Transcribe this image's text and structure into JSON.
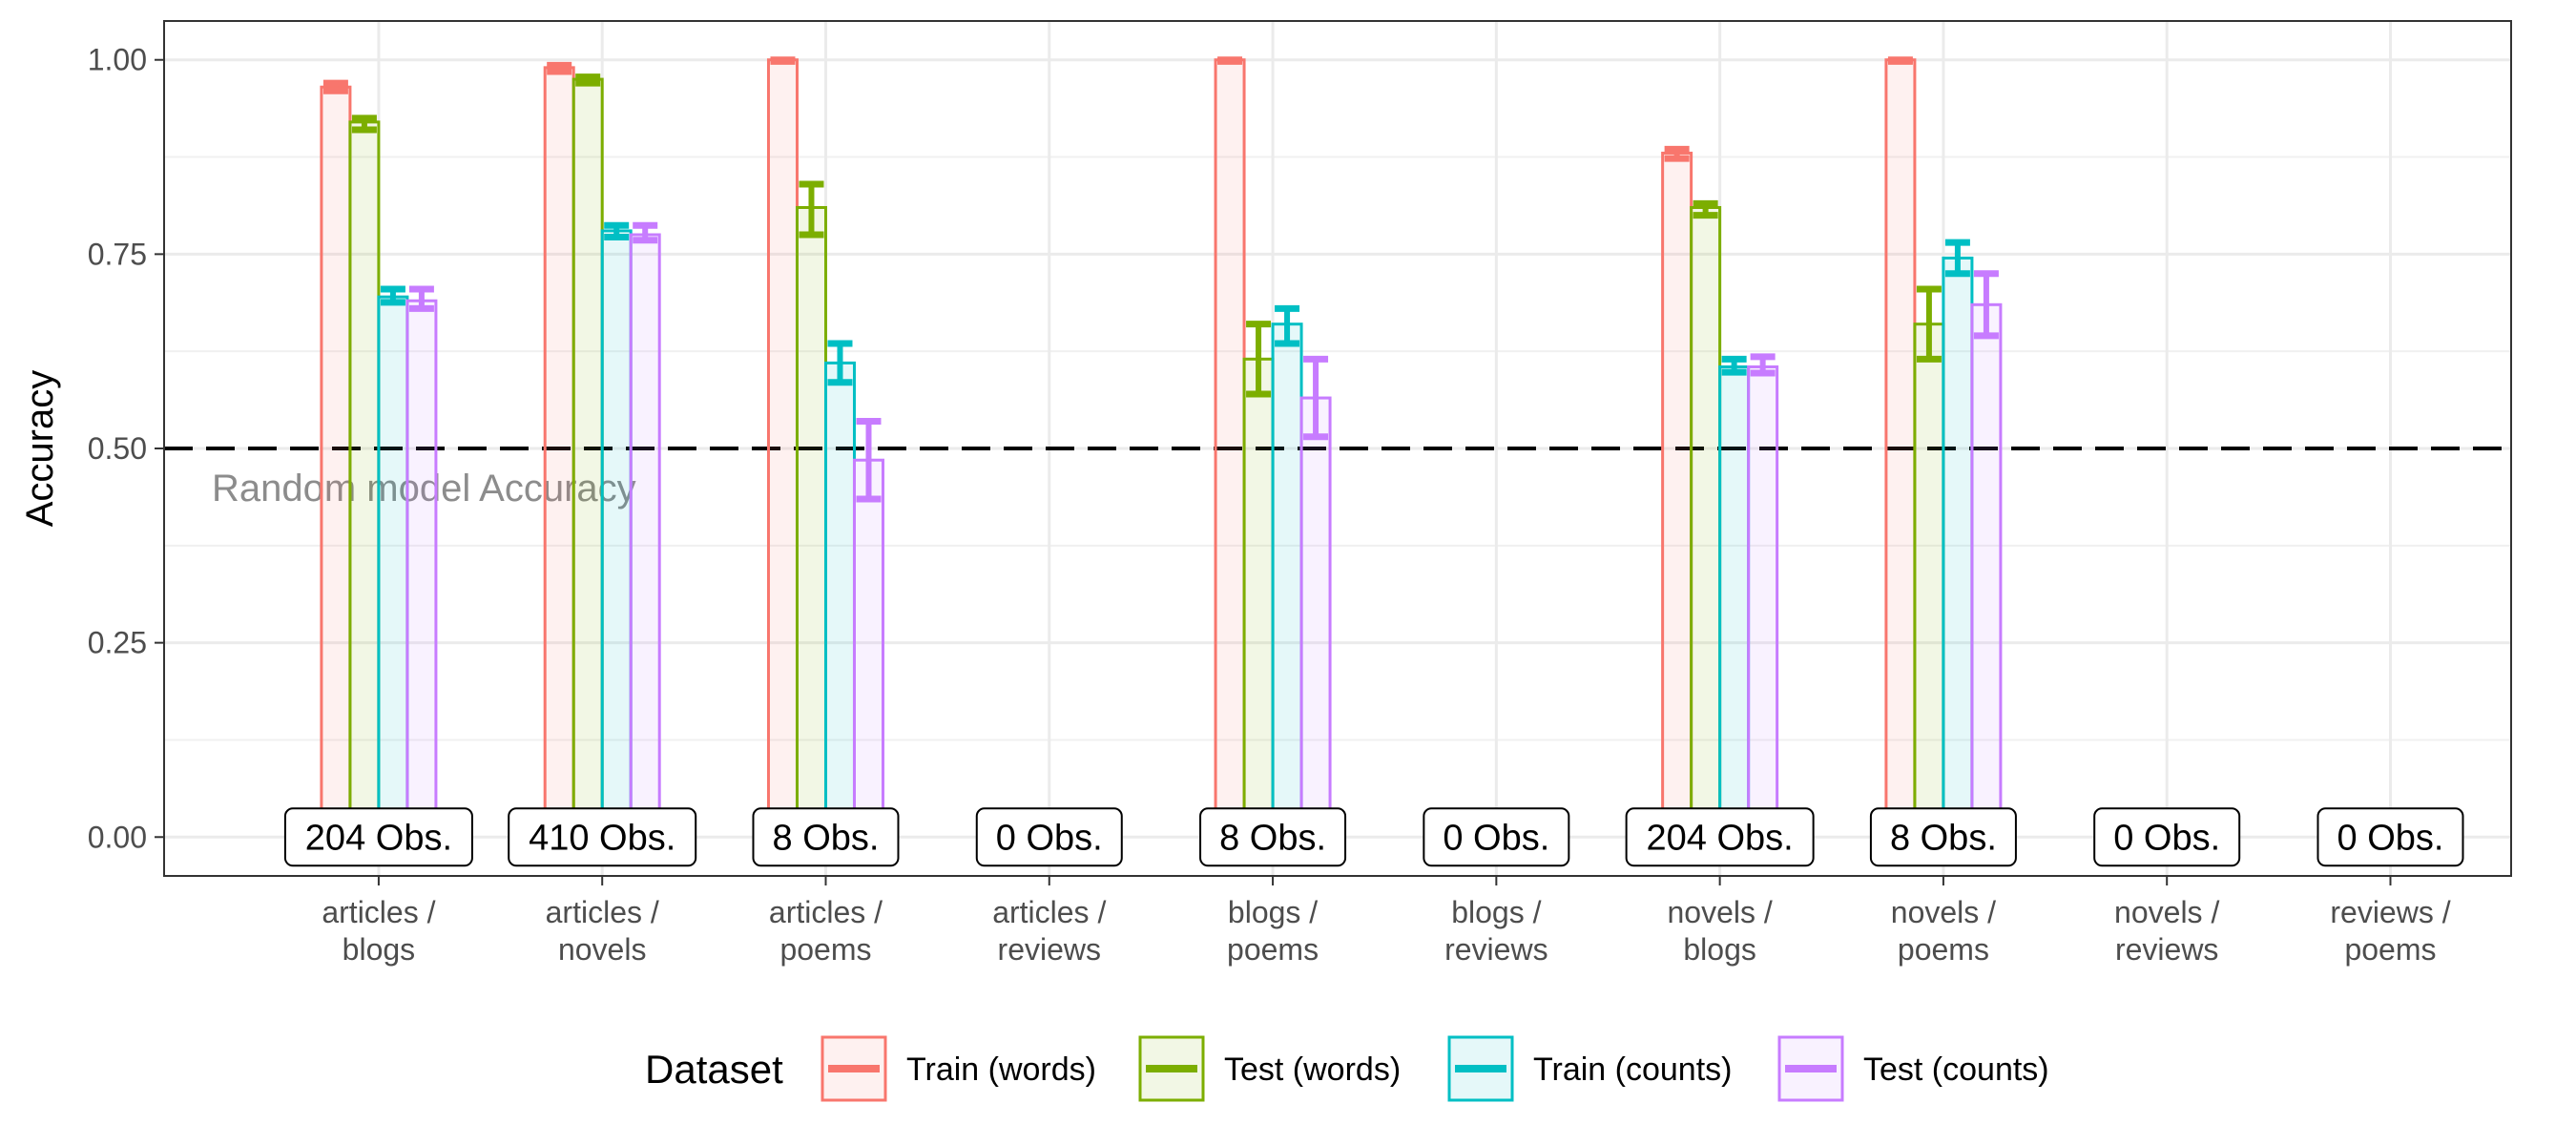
{
  "chart_data": {
    "type": "bar",
    "ylabel": "Accuracy",
    "ylim": [
      -0.05,
      1.05
    ],
    "yticks": [
      "0.00",
      "0.25",
      "0.50",
      "0.75",
      "1.00"
    ],
    "categories": [
      [
        "articles /",
        "blogs"
      ],
      [
        "articles /",
        "novels"
      ],
      [
        "articles /",
        "poems"
      ],
      [
        "articles /",
        "reviews"
      ],
      [
        "blogs /",
        "poems"
      ],
      [
        "blogs /",
        "reviews"
      ],
      [
        "novels /",
        "blogs"
      ],
      [
        "novels /",
        "poems"
      ],
      [
        "novels /",
        "reviews"
      ],
      [
        "reviews /",
        "poems"
      ]
    ],
    "observations": [
      "204 Obs.",
      "410 Obs.",
      "8 Obs.",
      "0 Obs.",
      "8 Obs.",
      "0 Obs.",
      "204 Obs.",
      "8 Obs.",
      "0 Obs.",
      "0 Obs."
    ],
    "reference_line": {
      "value": 0.5,
      "label": "Random model Accuracy"
    },
    "legend_title": "Dataset",
    "legend_position": "bottom",
    "series": [
      {
        "name": "Train (words)",
        "color": "#F8766D",
        "values": [
          0.965,
          0.99,
          1.0,
          null,
          1.0,
          null,
          0.88,
          1.0,
          null,
          null
        ],
        "lower": [
          0.96,
          0.985,
          0.998,
          null,
          0.998,
          null,
          0.873,
          0.998,
          null,
          null
        ],
        "upper": [
          0.97,
          0.993,
          1.0,
          null,
          1.0,
          null,
          0.885,
          1.0,
          null,
          null
        ]
      },
      {
        "name": "Test (words)",
        "color": "#7CAE00",
        "values": [
          0.92,
          0.975,
          0.81,
          null,
          0.615,
          null,
          0.81,
          0.66,
          null,
          null
        ],
        "lower": [
          0.91,
          0.97,
          0.775,
          null,
          0.57,
          null,
          0.8,
          0.615,
          null,
          null
        ],
        "upper": [
          0.925,
          0.978,
          0.84,
          null,
          0.66,
          null,
          0.815,
          0.705,
          null,
          null
        ]
      },
      {
        "name": "Train (counts)",
        "color": "#00BFC4",
        "values": [
          0.695,
          0.78,
          0.61,
          null,
          0.66,
          null,
          0.605,
          0.745,
          null,
          null
        ],
        "lower": [
          0.688,
          0.772,
          0.585,
          null,
          0.635,
          null,
          0.598,
          0.725,
          null,
          null
        ],
        "upper": [
          0.705,
          0.787,
          0.635,
          null,
          0.68,
          null,
          0.615,
          0.765,
          null,
          null
        ]
      },
      {
        "name": "Test (counts)",
        "color": "#C77CFF",
        "values": [
          0.69,
          0.775,
          0.485,
          null,
          0.565,
          null,
          0.605,
          0.685,
          null,
          null
        ],
        "lower": [
          0.68,
          0.768,
          0.435,
          null,
          0.515,
          null,
          0.597,
          0.645,
          null,
          null
        ],
        "upper": [
          0.705,
          0.787,
          0.535,
          null,
          0.615,
          null,
          0.618,
          0.725,
          null,
          null
        ]
      }
    ]
  }
}
